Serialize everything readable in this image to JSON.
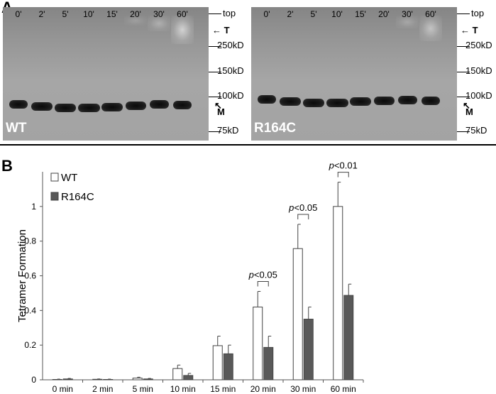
{
  "panel_a": {
    "label": "A",
    "lanes": [
      "0'",
      "2'",
      "5'",
      "10'",
      "15'",
      "20'",
      "30'",
      "60'"
    ],
    "markers": {
      "top": "top",
      "t": "T",
      "m": "M",
      "mw": [
        "250kD",
        "150kD",
        "100kD",
        "75kD"
      ]
    },
    "blots": [
      {
        "name": "WT"
      },
      {
        "name": "R164C"
      }
    ]
  },
  "panel_b": {
    "label": "B"
  },
  "chart_data": {
    "type": "bar",
    "categories": [
      "0 min",
      "2 min",
      "5 min",
      "10 min",
      "15 min",
      "20 min",
      "30 min",
      "60 min"
    ],
    "series": [
      {
        "name": "WT",
        "color": "#ffffff",
        "values": [
          0.002,
          0.003,
          0.01,
          0.065,
          0.197,
          0.42,
          0.757,
          1.0
        ],
        "errors": [
          0.002,
          0.002,
          0.005,
          0.02,
          0.055,
          0.09,
          0.14,
          0.14
        ]
      },
      {
        "name": "R164C",
        "color": "#595959",
        "values": [
          0.005,
          0.002,
          0.005,
          0.025,
          0.15,
          0.187,
          0.35,
          0.487
        ],
        "errors": [
          0.003,
          0.002,
          0.003,
          0.012,
          0.05,
          0.065,
          0.07,
          0.065
        ]
      }
    ],
    "ylabel": "Tetramer Formation",
    "xlabel": "",
    "ylim": [
      0,
      1.2
    ],
    "yticks": [
      "0",
      "0.2",
      "0.4",
      "0.6",
      "0.8",
      "1"
    ],
    "legend": "top-left",
    "annotations": [
      {
        "category": "20 min",
        "p_italic": "p",
        "text": "<0.05"
      },
      {
        "category": "30 min",
        "p_italic": "p",
        "text": "<0.05"
      },
      {
        "category": "60 min",
        "p_italic": "p",
        "text": "<0.01"
      }
    ]
  }
}
